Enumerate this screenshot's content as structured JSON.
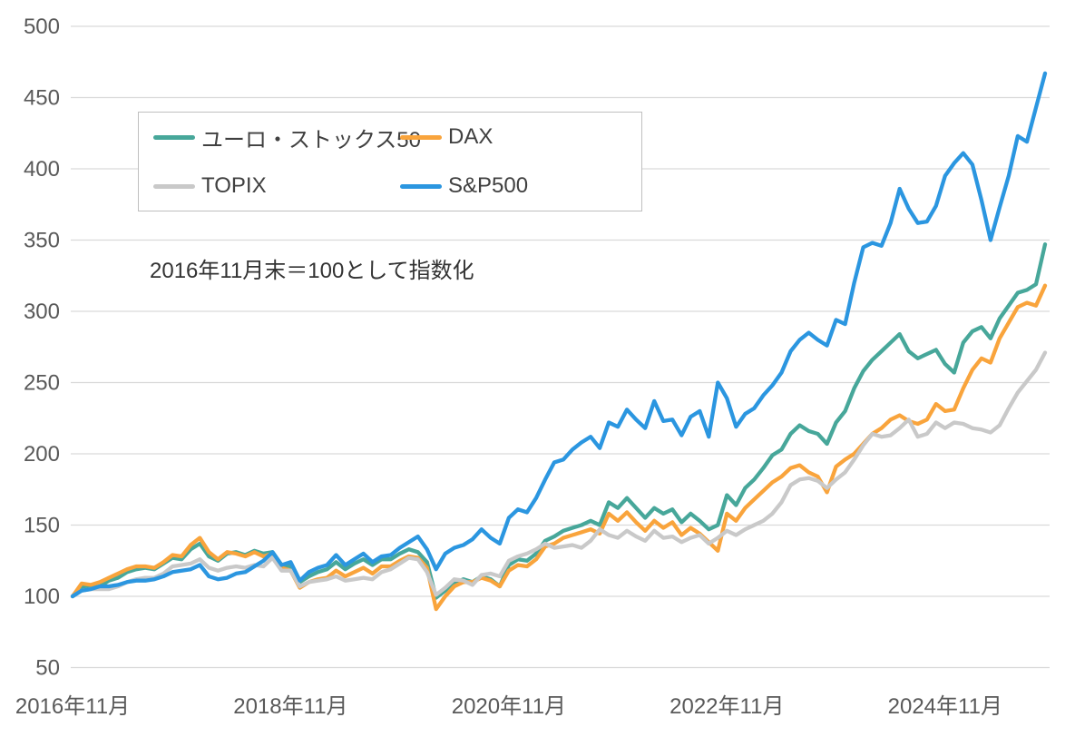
{
  "chart_data": {
    "type": "line",
    "title": "",
    "annotation": "2016年11月末＝100として指数化",
    "grid": "horizontal",
    "legend_position": "top-left-box",
    "x_axis": {
      "start": "2016-11",
      "end": "2025-10",
      "step": "monthly",
      "points": 108,
      "tick_labels": [
        "2016年11月",
        "2018年11月",
        "2020年11月",
        "2022年11月",
        "2024年11月"
      ],
      "tick_month_indices": [
        0,
        24,
        48,
        72,
        96
      ]
    },
    "y_axis": {
      "min": 50,
      "max": 500,
      "tick_step": 50,
      "tick_labels": [
        "500",
        "450",
        "400",
        "350",
        "300",
        "250",
        "200",
        "150",
        "100",
        "50"
      ],
      "tick_values": [
        500,
        450,
        400,
        350,
        300,
        250,
        200,
        150,
        100,
        50
      ]
    },
    "series": [
      {
        "name": "ユーロ・ストックス50",
        "color": "#47A79A",
        "values": [
          100,
          107,
          106,
          107,
          111,
          113,
          117,
          119,
          120,
          119,
          123,
          127,
          126,
          133,
          137,
          128,
          125,
          130,
          131,
          129,
          132,
          130,
          131,
          122,
          121,
          110,
          114,
          117,
          119,
          124,
          119,
          123,
          126,
          122,
          126,
          126,
          130,
          133,
          131,
          124,
          99,
          104,
          109,
          112,
          110,
          114,
          112,
          107,
          122,
          126,
          125,
          130,
          139,
          142,
          146,
          148,
          150,
          153,
          150,
          166,
          162,
          169,
          162,
          155,
          162,
          158,
          161,
          152,
          158,
          153,
          147,
          150,
          171,
          164,
          176,
          182,
          190,
          199,
          203,
          214,
          220,
          216,
          214,
          207,
          222,
          230,
          246,
          258,
          266,
          272,
          278,
          284,
          272,
          267,
          270,
          273,
          263,
          257,
          278,
          286,
          289,
          281,
          295,
          304,
          313,
          315,
          319,
          347
        ]
      },
      {
        "name": "DAX",
        "color": "#F9A43C",
        "values": [
          100,
          109,
          108,
          110,
          113,
          116,
          119,
          121,
          121,
          120,
          124,
          129,
          128,
          136,
          141,
          131,
          126,
          131,
          130,
          128,
          131,
          128,
          130,
          120,
          118,
          106,
          110,
          112,
          113,
          118,
          114,
          117,
          120,
          116,
          121,
          121,
          125,
          128,
          127,
          120,
          91,
          100,
          107,
          110,
          110,
          113,
          111,
          107,
          118,
          122,
          121,
          126,
          135,
          137,
          141,
          143,
          145,
          147,
          144,
          158,
          153,
          159,
          152,
          146,
          153,
          148,
          152,
          143,
          148,
          144,
          138,
          132,
          158,
          153,
          162,
          168,
          174,
          180,
          184,
          190,
          192,
          187,
          184,
          173,
          191,
          196,
          200,
          207,
          214,
          218,
          224,
          227,
          223,
          221,
          224,
          235,
          230,
          231,
          246,
          259,
          267,
          264,
          281,
          292,
          303,
          306,
          304,
          318
        ]
      },
      {
        "name": "TOPIX",
        "color": "#C9C9C9",
        "values": [
          100,
          104,
          105,
          105,
          105,
          107,
          110,
          112,
          113,
          113,
          116,
          121,
          122,
          123,
          126,
          120,
          118,
          120,
          121,
          120,
          122,
          121,
          127,
          118,
          118,
          107,
          110,
          111,
          112,
          114,
          111,
          112,
          113,
          112,
          117,
          119,
          123,
          127,
          126,
          117,
          101,
          106,
          112,
          111,
          108,
          115,
          116,
          114,
          125,
          128,
          130,
          133,
          137,
          134,
          135,
          136,
          134,
          139,
          147,
          143,
          141,
          146,
          142,
          139,
          146,
          141,
          142,
          138,
          141,
          143,
          137,
          141,
          146,
          143,
          147,
          150,
          153,
          158,
          166,
          178,
          182,
          183,
          181,
          176,
          182,
          187,
          196,
          206,
          214,
          212,
          213,
          218,
          224,
          212,
          214,
          222,
          218,
          222,
          221,
          218,
          217,
          215,
          220,
          232,
          243,
          251,
          259,
          271
        ]
      },
      {
        "name": "S&P500",
        "color": "#2B96E0",
        "values": [
          100,
          104,
          105,
          107,
          107,
          108,
          110,
          111,
          111,
          112,
          114,
          117,
          118,
          119,
          122,
          114,
          112,
          113,
          116,
          117,
          121,
          125,
          131,
          122,
          124,
          111,
          117,
          120,
          122,
          129,
          122,
          126,
          130,
          124,
          128,
          129,
          134,
          138,
          142,
          133,
          119,
          130,
          134,
          136,
          140,
          147,
          141,
          137,
          155,
          161,
          159,
          169,
          182,
          194,
          196,
          203,
          208,
          212,
          204,
          222,
          219,
          231,
          224,
          218,
          237,
          223,
          224,
          213,
          226,
          230,
          212,
          250,
          239,
          219,
          228,
          232,
          241,
          248,
          257,
          272,
          280,
          285,
          280,
          276,
          294,
          291,
          320,
          345,
          348,
          346,
          362,
          386,
          372,
          362,
          363,
          374,
          395,
          404,
          411,
          403,
          378,
          350,
          373,
          395,
          423,
          419,
          443,
          467
        ]
      }
    ]
  },
  "style": {
    "gridline_color": "#D9D9D9",
    "axis_text_color": "#595959",
    "legend_text_color": "#404040",
    "annotation_text_color": "#333333",
    "background_color": "#FFFFFF"
  }
}
